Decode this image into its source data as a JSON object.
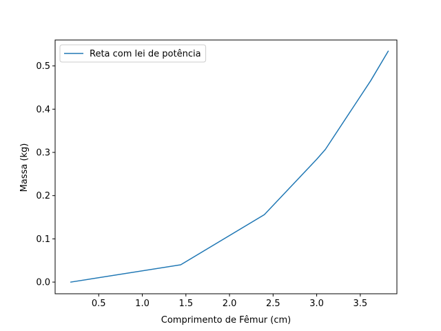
{
  "chart_data": {
    "type": "line",
    "title": "",
    "xlabel": "Comprimento de Fêmur (cm)",
    "ylabel": "Massa (kg)",
    "xlim": [
      0.0,
      3.92
    ],
    "ylim": [
      -0.027,
      0.56
    ],
    "xticks": [
      0.5,
      1.0,
      1.5,
      2.0,
      2.5,
      3.0,
      3.5
    ],
    "xtick_labels": [
      "0.5",
      "1.0",
      "1.5",
      "2.0",
      "2.5",
      "3.0",
      "3.5"
    ],
    "yticks": [
      0.0,
      0.1,
      0.2,
      0.3,
      0.4,
      0.5
    ],
    "ytick_labels": [
      "0.0",
      "0.1",
      "0.2",
      "0.3",
      "0.4",
      "0.5"
    ],
    "grid": false,
    "legend_position": "upper-left",
    "series": [
      {
        "name": "Reta com lei de potência",
        "color": "#1f77b4",
        "x": [
          0.18,
          1.44,
          2.4,
          3.0,
          3.1,
          3.62,
          3.82
        ],
        "y": [
          0.0,
          0.04,
          0.156,
          0.284,
          0.307,
          0.466,
          0.534
        ]
      }
    ]
  }
}
